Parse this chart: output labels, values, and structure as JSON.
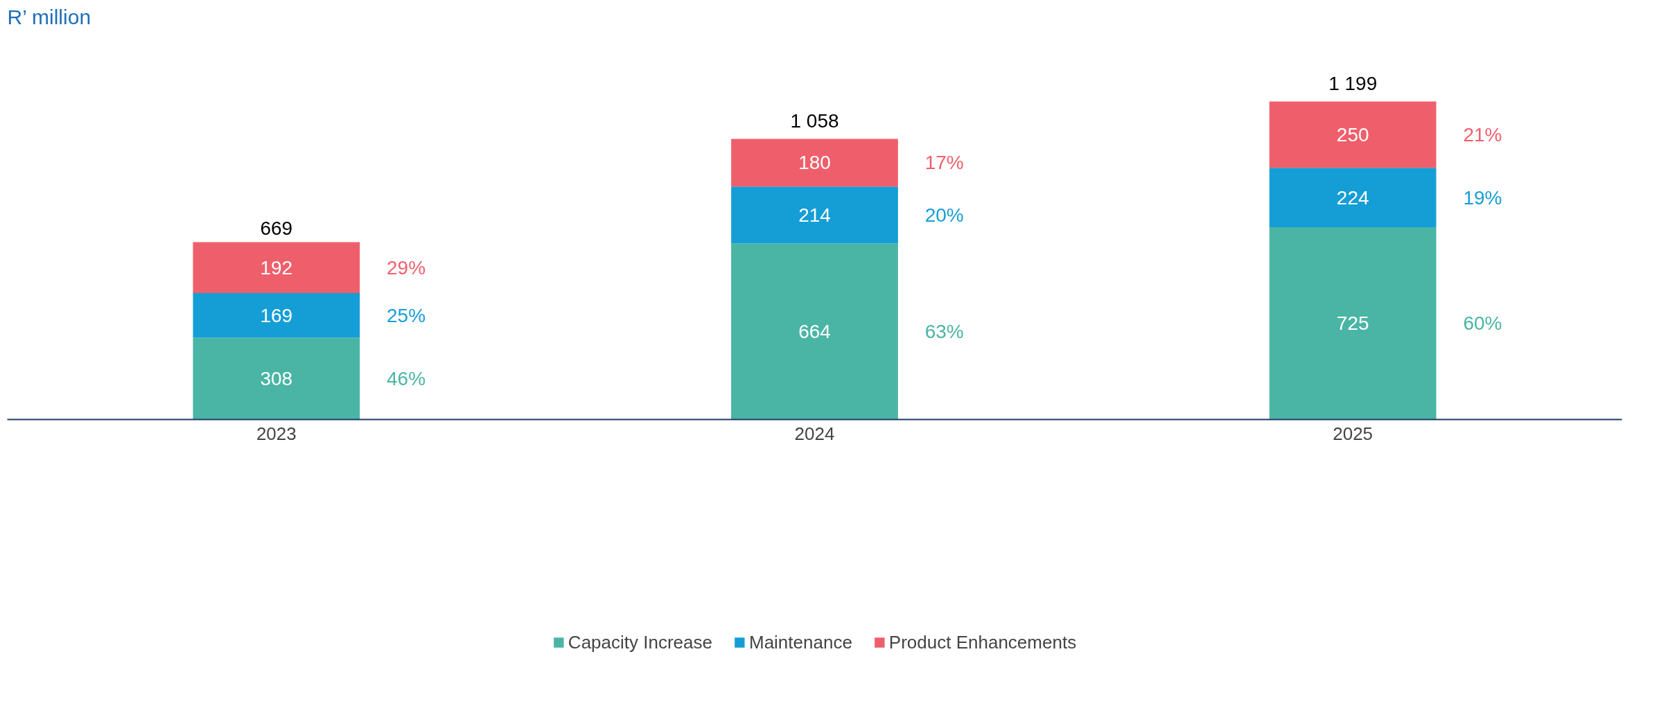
{
  "chart_data": {
    "type": "bar",
    "stacked": true,
    "title": "R’ million",
    "categories": [
      "2023",
      "2024",
      "2025"
    ],
    "series": [
      {
        "name": "Capacity Increase",
        "color": "#4ab5a5",
        "values": [
          308,
          664,
          725
        ]
      },
      {
        "name": "Maintenance",
        "color": "#159ed6",
        "values": [
          169,
          214,
          224
        ]
      },
      {
        "name": "Product Enhancements",
        "color": "#ef5f6b",
        "values": [
          192,
          180,
          250
        ]
      }
    ],
    "data_labels": true,
    "totals": [
      "669",
      "1 058",
      "1 199"
    ],
    "annotations": [
      "46%",
      "25%",
      "29%",
      "63%",
      "20%",
      "17%",
      "60%",
      "19%",
      "21%"
    ],
    "legend": "bottom",
    "grid": false
  }
}
